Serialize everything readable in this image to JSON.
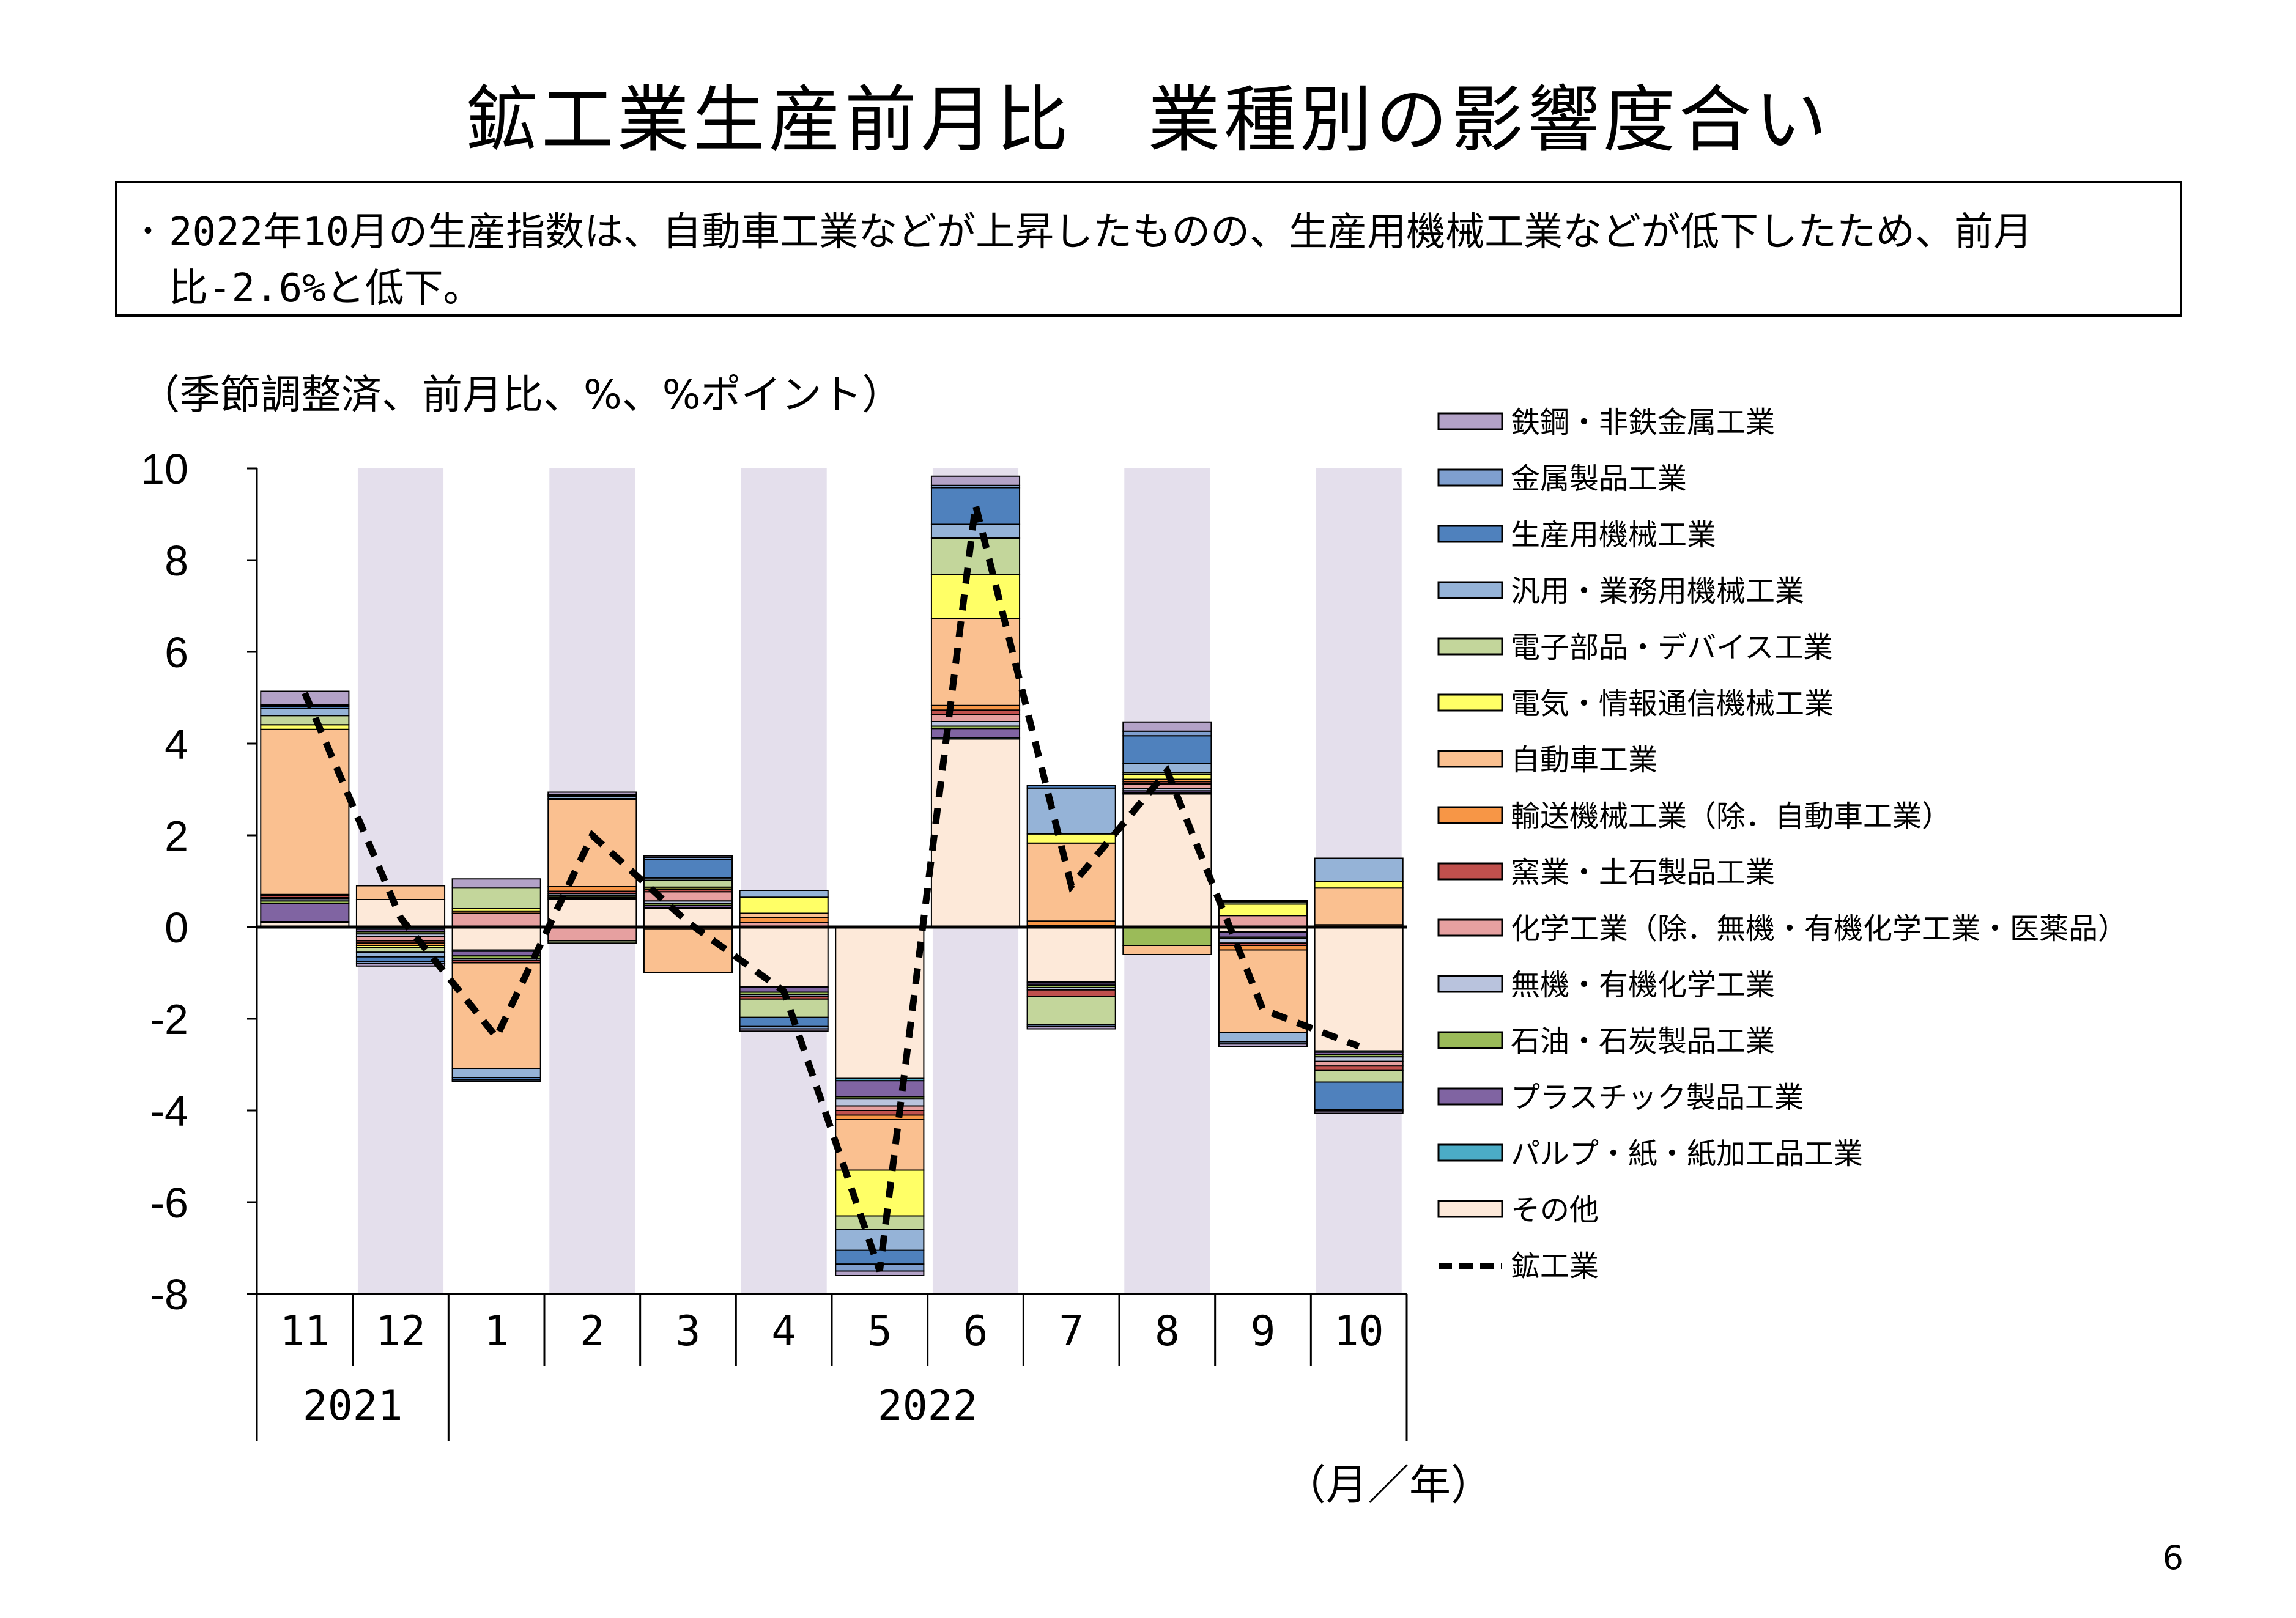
{
  "title": "鉱工業生産前月比　業種別の影響度合い",
  "summary": "2022年10月の生産指数は、自動車工業などが上昇したものの、生産用機械工業などが低下したため、前月比-2.6%と低下。",
  "note": "（季節調整済、前月比、%、%ポイント）",
  "page_number": "6",
  "chart_data": {
    "type": "bar",
    "stacked": true,
    "ylim": [
      -8,
      10
    ],
    "yticks": [
      "10",
      "8",
      "6",
      "4",
      "2",
      "0",
      "-2",
      "-4",
      "-6",
      "-8"
    ],
    "categories": [
      "11",
      "12",
      "1",
      "2",
      "3",
      "4",
      "5",
      "6",
      "7",
      "8",
      "9",
      "10"
    ],
    "year_labels": [
      "2021",
      "2022"
    ],
    "axis_unit_label": "（月／年）",
    "shaded_bands": [
      false,
      true,
      false,
      true,
      false,
      true,
      false,
      true,
      false,
      true,
      false,
      true
    ],
    "series": [
      {
        "name": "その他",
        "color": "#fde9d9",
        "values": [
          0.1,
          0.6,
          -0.5,
          0.6,
          0.4,
          -1.3,
          -3.3,
          4.1,
          -1.2,
          2.9,
          -0.1,
          -2.7
        ]
      },
      {
        "name": "パルプ・紙・紙加工品工業",
        "color": "#4bacc6",
        "values": [
          0.02,
          -0.05,
          -0.03,
          0.02,
          0.02,
          -0.02,
          -0.05,
          0.03,
          -0.02,
          0.02,
          -0.02,
          -0.03
        ]
      },
      {
        "name": "プラスチック製品工業",
        "color": "#8064a2",
        "values": [
          0.4,
          -0.05,
          -0.1,
          0.03,
          0.05,
          -0.1,
          -0.35,
          0.2,
          -0.05,
          0.05,
          -0.1,
          -0.05
        ]
      },
      {
        "name": "石油・石炭製品工業",
        "color": "#9bbb59",
        "values": [
          0.05,
          -0.05,
          -0.05,
          0.03,
          0.05,
          -0.05,
          -0.05,
          0.05,
          -0.05,
          -0.4,
          -0.03,
          -0.05
        ]
      },
      {
        "name": "無機・有機化学工業",
        "color": "#b9c3dd",
        "values": [
          0.05,
          -0.05,
          -0.05,
          0.05,
          0.05,
          -0.05,
          -0.15,
          0.1,
          -0.05,
          0.05,
          -0.1,
          -0.1
        ]
      },
      {
        "name": "化学工業（除．無機・有機化学工業・医薬品）",
        "color": "#e6a0a0",
        "values": [
          0.02,
          -0.1,
          0.3,
          -0.3,
          0.2,
          0.1,
          -0.1,
          0.15,
          0.03,
          0.1,
          0.25,
          -0.1
        ]
      },
      {
        "name": "窯業・土石製品工業",
        "color": "#c0504d",
        "values": [
          0.05,
          -0.05,
          -0.05,
          0.05,
          0.05,
          -0.05,
          -0.1,
          0.1,
          -0.15,
          0.05,
          -0.05,
          -0.1
        ]
      },
      {
        "name": "輸送機械工業（除．自動車工業）",
        "color": "#f79646",
        "values": [
          0.02,
          -0.05,
          0.05,
          0.1,
          -0.05,
          0.1,
          -0.1,
          0.1,
          0.1,
          0.05,
          -0.1,
          0.05
        ]
      },
      {
        "name": "自動車工業",
        "color": "#fac090",
        "values": [
          3.6,
          0.3,
          -2.3,
          1.9,
          -0.95,
          0.1,
          -1.1,
          1.9,
          1.7,
          -0.2,
          -1.8,
          0.8
        ]
      },
      {
        "name": "電気・情報通信機械工業",
        "color": "#ffff66",
        "values": [
          0.1,
          -0.05,
          0.05,
          0.02,
          0.05,
          0.35,
          -1.0,
          0.95,
          0.2,
          0.1,
          0.25,
          0.15
        ]
      },
      {
        "name": "電子部品・デバイス工業",
        "color": "#c3d69b",
        "values": [
          0.2,
          -0.1,
          0.45,
          -0.05,
          0.15,
          -0.4,
          -0.3,
          0.8,
          -0.6,
          0.05,
          0.05,
          -0.25
        ]
      },
      {
        "name": "汎用・業務用機械工業",
        "color": "#95b3d7",
        "values": [
          0.15,
          -0.1,
          -0.2,
          0.05,
          0.05,
          0.15,
          -0.45,
          0.3,
          1.0,
          0.2,
          -0.2,
          0.5
        ]
      },
      {
        "name": "生産用機械工業",
        "color": "#4f81bd",
        "values": [
          0.05,
          -0.1,
          -0.05,
          0.02,
          0.4,
          -0.2,
          -0.3,
          0.8,
          0.05,
          0.6,
          0.03,
          -0.6
        ]
      },
      {
        "name": "金属製品工業",
        "color": "#7f9fcf",
        "values": [
          0.03,
          -0.05,
          -0.03,
          0.02,
          0.05,
          -0.05,
          -0.15,
          0.05,
          -0.05,
          0.1,
          -0.05,
          -0.03
        ]
      },
      {
        "name": "鉄鋼・非鉄金属工業",
        "color": "#b3a2c7",
        "values": [
          0.3,
          -0.05,
          0.2,
          0.05,
          0.03,
          -0.05,
          -0.1,
          0.2,
          -0.05,
          0.2,
          -0.05,
          -0.05
        ]
      }
    ],
    "line": {
      "name": "鉱工業",
      "color": "#000000",
      "style": "dashed",
      "values": [
        5.1,
        0.2,
        -2.4,
        2.0,
        0.1,
        -1.4,
        -7.5,
        9.2,
        0.9,
        3.4,
        -1.8,
        -2.6
      ]
    },
    "legend_order": [
      "鉄鋼・非鉄金属工業",
      "金属製品工業",
      "生産用機械工業",
      "汎用・業務用機械工業",
      "電子部品・デバイス工業",
      "電気・情報通信機械工業",
      "自動車工業",
      "輸送機械工業（除．自動車工業）",
      "窯業・土石製品工業",
      "化学工業（除．無機・有機化学工業・医薬品）",
      "無機・有機化学工業",
      "石油・石炭製品工業",
      "プラスチック製品工業",
      "パルプ・紙・紙加工品工業",
      "その他",
      "鉱工業"
    ],
    "legend_position": "right"
  }
}
